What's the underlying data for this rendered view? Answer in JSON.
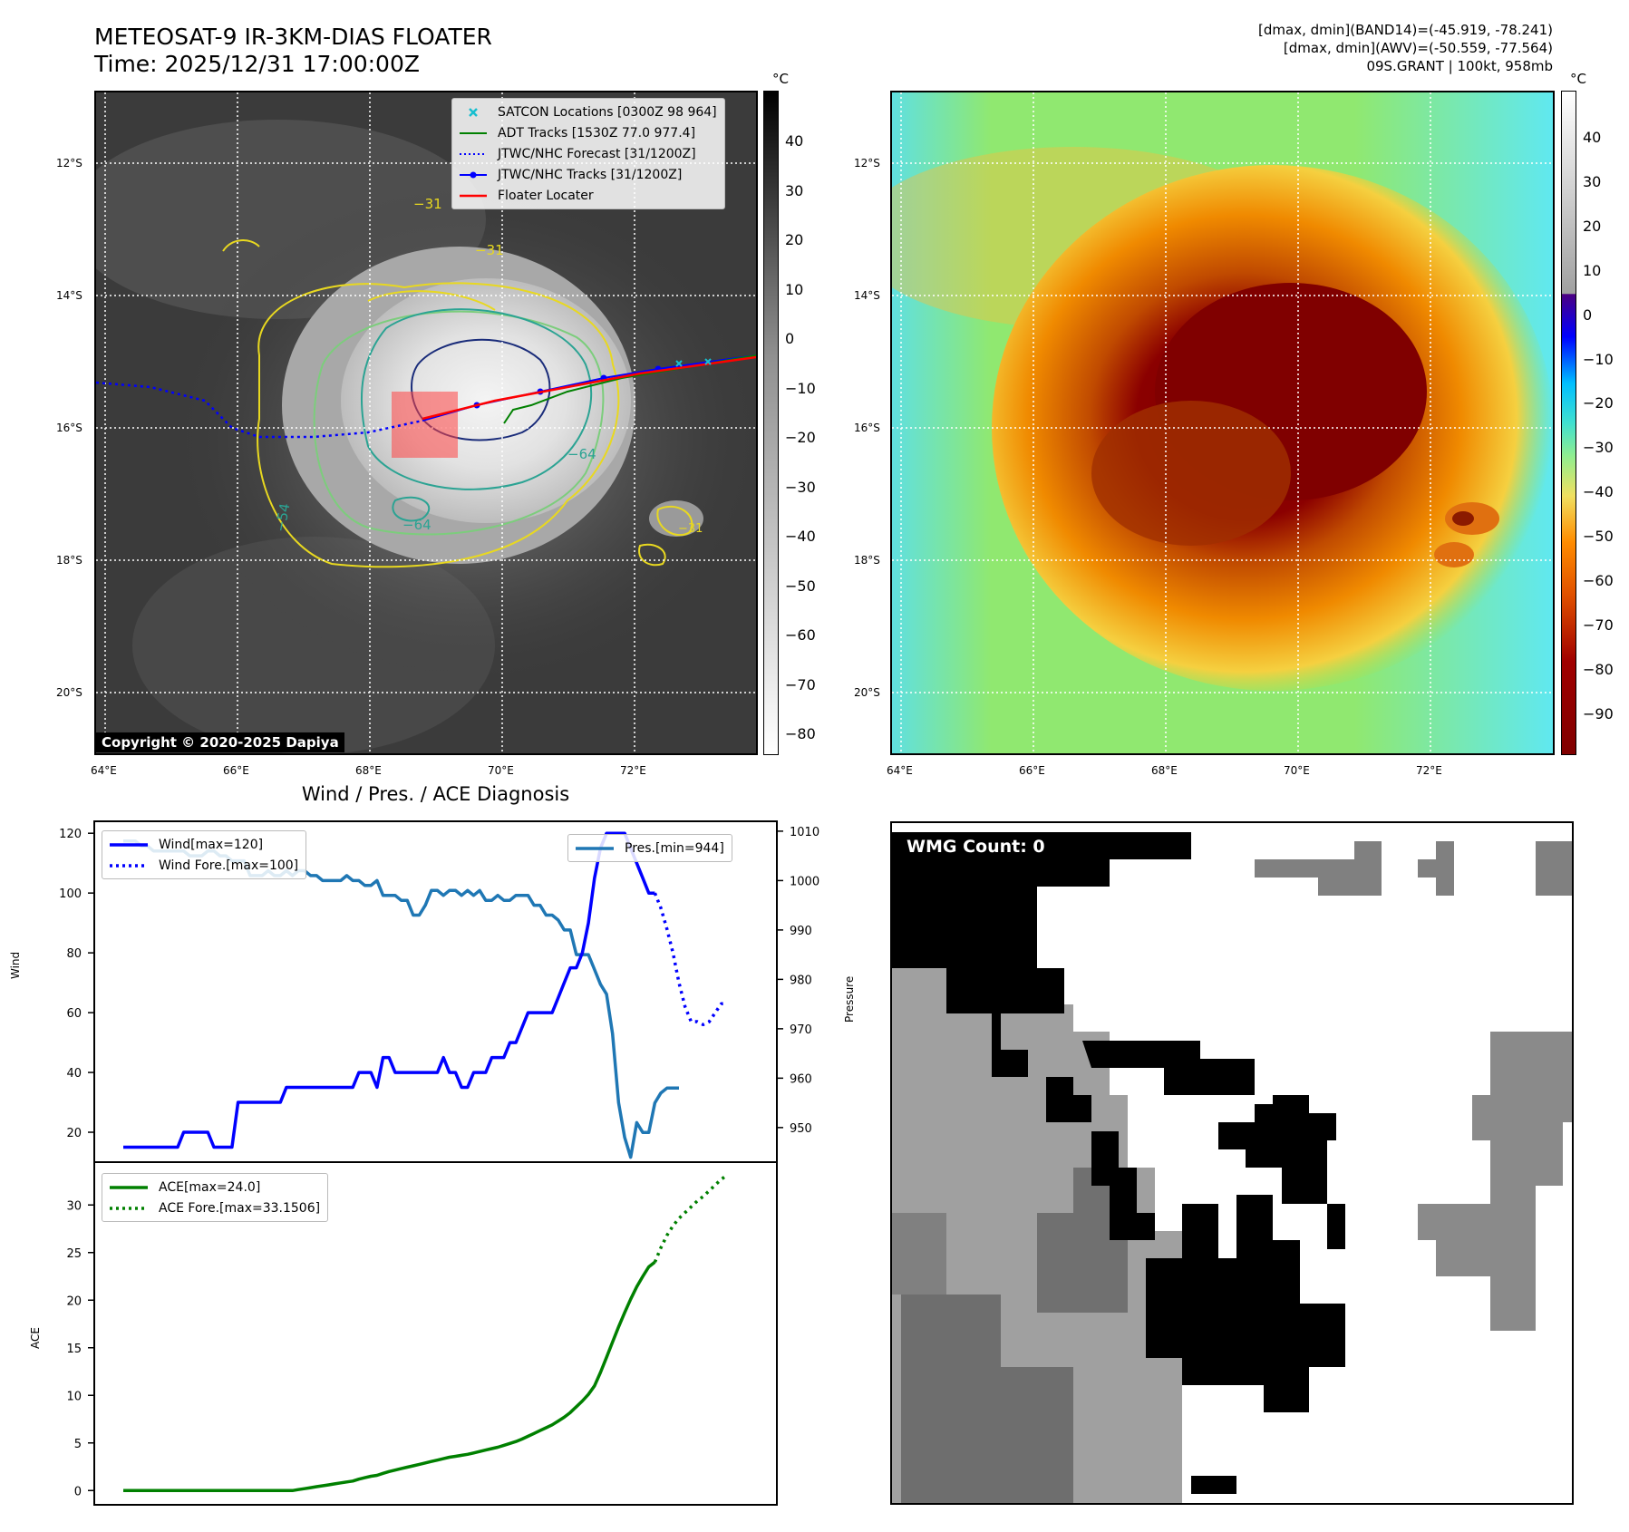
{
  "header": {
    "title_line1": "METEOSAT-9 IR-3KM-DIAS FLOATER",
    "title_line2": "Time: 2025/12/31 17:00:00Z",
    "info_line1": "[dmax, dmin](BAND14)=(-45.919, -78.241)",
    "info_line2": "[dmax, dmin](AWV)=(-50.559, -77.564)",
    "info_line3": "09S.GRANT | 100kt, 958mb"
  },
  "map": {
    "lat_labels": [
      "12°S",
      "14°S",
      "16°S",
      "18°S",
      "20°S"
    ],
    "lon_labels": [
      "64°E",
      "66°E",
      "68°E",
      "70°E",
      "72°E"
    ],
    "copyright": "Copyright © 2020-2025 Dapiya",
    "contour_labels": [
      "−31",
      "−31",
      "−54",
      "−64",
      "−64",
      "−31"
    ]
  },
  "colorbar_ir": {
    "unit": "°C",
    "ticks": [
      "40",
      "30",
      "20",
      "10",
      "0",
      "−10",
      "−20",
      "−30",
      "−40",
      "−50",
      "−60",
      "−70",
      "−80"
    ]
  },
  "colorbar_color": {
    "unit": "°C",
    "ticks": [
      "40",
      "30",
      "20",
      "10",
      "0",
      "−10",
      "−20",
      "−30",
      "−40",
      "−50",
      "−60",
      "−70",
      "−80",
      "−90"
    ]
  },
  "legend_map": {
    "satcon": "SATCON Locations [0300Z 98 964]",
    "adt": "ADT Tracks [1530Z 77.0 977.4]",
    "jtwc_forecast": "JTWC/NHC Forecast [31/1200Z]",
    "jtwc_tracks": "JTWC/NHC Tracks [31/1200Z]",
    "floater": "Floater Locater"
  },
  "colors": {
    "satcon": "#17becf",
    "adt": "#008000",
    "jtwc": "#0000ff",
    "floater": "#ff0000",
    "pressure": "#1f77b4",
    "ace": "#008000"
  },
  "wmg": {
    "label": "WMG Count: 0"
  },
  "chart_data": [
    {
      "type": "line",
      "title": "Wind / Pres. / ACE Diagnosis",
      "ylabel": "Wind",
      "ylim": [
        10,
        124
      ],
      "yticks": [
        20,
        40,
        60,
        80,
        100,
        120
      ],
      "legend": {
        "wind": "Wind[max=120]",
        "wind_fore": "Wind Fore.[max=100]"
      },
      "series": [
        {
          "name": "Wind",
          "values": [
            15,
            15,
            15,
            15,
            15,
            15,
            15,
            15,
            15,
            15,
            20,
            20,
            20,
            20,
            20,
            15,
            15,
            15,
            15,
            30,
            30,
            30,
            30,
            30,
            30,
            30,
            30,
            35,
            35,
            35,
            35,
            35,
            35,
            35,
            35,
            35,
            35,
            35,
            35,
            40,
            40,
            40,
            35,
            45,
            45,
            40,
            40,
            40,
            40,
            40,
            40,
            40,
            40,
            45,
            40,
            40,
            35,
            35,
            40,
            40,
            40,
            45,
            45,
            45,
            50,
            50,
            55,
            60,
            60,
            60,
            60,
            60,
            65,
            70,
            75,
            75,
            80,
            90,
            105,
            115,
            120,
            120,
            120,
            120,
            115,
            110,
            105,
            100,
            100
          ]
        },
        {
          "name": "Wind Fore.",
          "x_start": 88,
          "values": [
            100,
            95,
            88,
            80,
            70,
            62,
            57,
            57,
            56,
            57,
            60,
            63,
            63
          ]
        }
      ]
    },
    {
      "type": "line",
      "ylabel": "Pressure",
      "ylim": [
        943,
        1012
      ],
      "yticks": [
        950,
        960,
        970,
        980,
        990,
        1000,
        1010
      ],
      "legend": {
        "pres": "Pres.[min=944]"
      },
      "series": [
        {
          "name": "Pres.",
          "values": [
            1008,
            1008,
            1008,
            1007,
            1007,
            1006,
            1006,
            1006,
            1006,
            1006,
            1006,
            1005,
            1005,
            1005,
            1006,
            1006,
            1005,
            1005,
            1004,
            1004,
            1004,
            1001,
            1001,
            1001,
            1002,
            1001,
            1001,
            1002,
            1001,
            1002,
            1002,
            1001,
            1001,
            1000,
            1000,
            1000,
            1000,
            1001,
            1000,
            1000,
            999,
            999,
            1000,
            997,
            997,
            997,
            996,
            996,
            993,
            993,
            995,
            998,
            998,
            997,
            998,
            998,
            997,
            998,
            997,
            998,
            996,
            996,
            997,
            996,
            996,
            997,
            997,
            997,
            995,
            995,
            993,
            993,
            992,
            990,
            990,
            985,
            985,
            985,
            982,
            979,
            977,
            969,
            955,
            948,
            944,
            951,
            949,
            949,
            955,
            957,
            958,
            958,
            958
          ]
        }
      ]
    },
    {
      "type": "line",
      "ylabel": "ACE",
      "ylim": [
        -1.5,
        34.5
      ],
      "yticks": [
        0,
        5,
        10,
        15,
        20,
        25,
        30
      ],
      "legend": {
        "ace": "ACE[max=24.0]",
        "ace_fore": "ACE Fore.[max=33.1506]"
      },
      "series": [
        {
          "name": "ACE",
          "values": [
            0,
            0,
            0,
            0,
            0,
            0,
            0,
            0,
            0,
            0,
            0,
            0,
            0,
            0,
            0,
            0,
            0,
            0,
            0,
            0,
            0,
            0,
            0,
            0,
            0,
            0,
            0,
            0,
            0,
            0.1,
            0.2,
            0.3,
            0.4,
            0.5,
            0.6,
            0.7,
            0.8,
            0.9,
            1.0,
            1.2,
            1.35,
            1.5,
            1.6,
            1.8,
            2.0,
            2.15,
            2.3,
            2.45,
            2.6,
            2.75,
            2.9,
            3.05,
            3.2,
            3.35,
            3.5,
            3.6,
            3.7,
            3.8,
            3.95,
            4.1,
            4.25,
            4.4,
            4.55,
            4.75,
            4.95,
            5.15,
            5.4,
            5.7,
            6.0,
            6.3,
            6.6,
            6.9,
            7.3,
            7.7,
            8.2,
            8.8,
            9.4,
            10.1,
            11.0,
            12.4,
            14.0,
            15.6,
            17.2,
            18.7,
            20.1,
            21.4,
            22.5,
            23.5,
            24.0
          ]
        },
        {
          "name": "ACE Fore.",
          "x_start": 88,
          "values": [
            24.0,
            25.5,
            26.8,
            27.8,
            28.6,
            29.2,
            29.8,
            30.4,
            30.9,
            31.5,
            32.1,
            32.7,
            33.15
          ]
        }
      ]
    }
  ]
}
